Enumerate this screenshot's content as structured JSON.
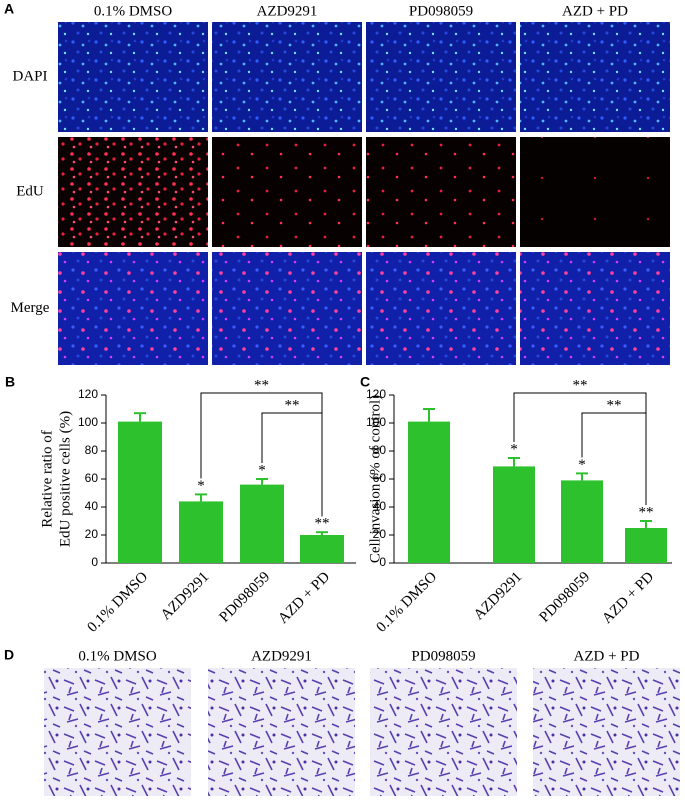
{
  "figure": {
    "panel_a": {
      "letter": "A",
      "columns": [
        "0.1% DMSO",
        "AZD9291",
        "PD098059",
        "AZD + PD"
      ],
      "rows": [
        "DAPI",
        "EdU",
        "Merge"
      ]
    },
    "panel_d": {
      "letter": "D",
      "columns": [
        "0.1% DMSO",
        "AZD9291",
        "PD098059",
        "AZD + PD"
      ]
    }
  },
  "chart_data": [
    {
      "type": "bar",
      "panel": "B",
      "y_label": [
        "Relative ratio of",
        "EdU positive cells (%)"
      ],
      "categories": [
        "0.1% DMSO",
        "AZD9291",
        "PD098059",
        "AZD + PD"
      ],
      "values": [
        101,
        44,
        56,
        20
      ],
      "error": [
        6,
        5,
        4,
        2
      ],
      "color": "#2ec12e",
      "significance": [
        null,
        "*",
        "*",
        "**"
      ],
      "comparisons": [
        {
          "pair": [
            "AZD9291",
            "AZD + PD"
          ],
          "label": "**"
        },
        {
          "pair": [
            "PD098059",
            "AZD + PD"
          ],
          "label": "**"
        }
      ],
      "ylim": [
        0,
        120
      ],
      "yticks": [
        0,
        20,
        40,
        60,
        80,
        100,
        120
      ]
    },
    {
      "type": "bar",
      "panel": "C",
      "y_label": [
        "Cell invasion (% of control)"
      ],
      "categories": [
        "0.1% DMSO",
        "AZD9291",
        "PD098059",
        "AZD + PD"
      ],
      "values": [
        101,
        69,
        59,
        25
      ],
      "error": [
        9,
        6,
        5,
        5
      ],
      "color": "#2ec12e",
      "significance": [
        null,
        "*",
        "*",
        "**"
      ],
      "comparisons": [
        {
          "pair": [
            "AZD9291",
            "AZD + PD"
          ],
          "label": "**"
        },
        {
          "pair": [
            "PD098059",
            "AZD + PD"
          ],
          "label": "**"
        }
      ],
      "ylim": [
        0,
        120
      ],
      "yticks": [
        0,
        20,
        40,
        60,
        80,
        100,
        120
      ]
    }
  ]
}
